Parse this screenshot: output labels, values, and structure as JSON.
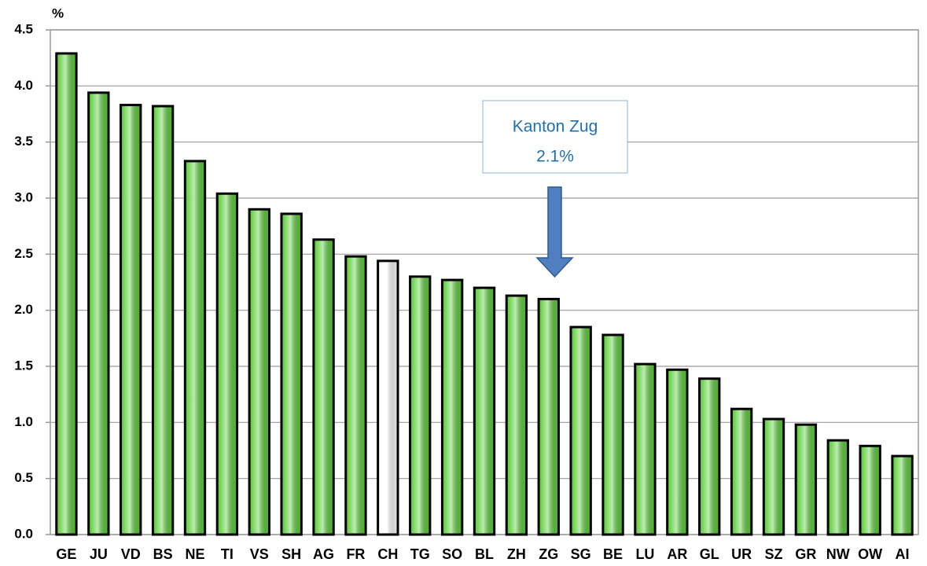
{
  "chart_data": {
    "type": "bar",
    "y_axis_label": "%",
    "categories": [
      "GE",
      "JU",
      "VD",
      "BS",
      "NE",
      "TI",
      "VS",
      "SH",
      "AG",
      "FR",
      "CH",
      "TG",
      "SO",
      "BL",
      "ZH",
      "ZG",
      "SG",
      "BE",
      "LU",
      "AR",
      "GL",
      "UR",
      "SZ",
      "GR",
      "NW",
      "OW",
      "AI"
    ],
    "values": [
      4.29,
      3.94,
      3.83,
      3.82,
      3.33,
      3.04,
      2.9,
      2.86,
      2.63,
      2.48,
      2.44,
      2.3,
      2.27,
      2.2,
      2.13,
      2.1,
      1.85,
      1.78,
      1.52,
      1.47,
      1.39,
      1.12,
      1.03,
      0.98,
      0.84,
      0.79,
      0.7
    ],
    "colors": [
      "#5ccf3a",
      "#5ccf3a",
      "#5ccf3a",
      "#5ccf3a",
      "#5ccf3a",
      "#5ccf3a",
      "#5ccf3a",
      "#5ccf3a",
      "#5ccf3a",
      "#5ccf3a",
      "#ffffff",
      "#5ccf3a",
      "#5ccf3a",
      "#5ccf3a",
      "#5ccf3a",
      "#5ccf3a",
      "#5ccf3a",
      "#5ccf3a",
      "#5ccf3a",
      "#5ccf3a",
      "#5ccf3a",
      "#5ccf3a",
      "#5ccf3a",
      "#5ccf3a",
      "#5ccf3a",
      "#5ccf3a",
      "#5ccf3a"
    ],
    "ylim": [
      0,
      4.5
    ],
    "yticks": [
      {
        "value": 0,
        "label": "0.0"
      },
      0.5,
      {
        "value": 1,
        "label": "1.0"
      },
      1.5,
      {
        "value": 2,
        "label": "2.0"
      },
      2.5,
      {
        "value": 3,
        "label": "3.0"
      },
      3.5,
      {
        "value": 4,
        "label": "4.0"
      },
      4.5
    ],
    "grid": true,
    "annotation": {
      "lines": [
        "Kanton Zug",
        "2.1%"
      ]
    }
  }
}
